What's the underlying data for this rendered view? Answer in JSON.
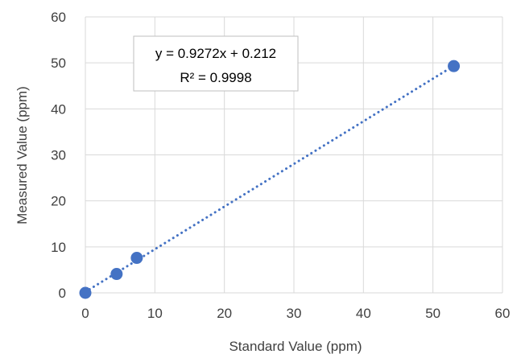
{
  "chart_data": {
    "type": "scatter",
    "title": "",
    "xlabel": "Standard Value (ppm)",
    "ylabel": "Measured Value (ppm)",
    "xlim": [
      0,
      60
    ],
    "ylim": [
      0,
      60
    ],
    "x_ticks": [
      "0",
      "10",
      "20",
      "30",
      "40",
      "50",
      "60"
    ],
    "y_ticks": [
      "0",
      "10",
      "20",
      "30",
      "40",
      "50",
      "60"
    ],
    "grid": true,
    "legend": "none",
    "series": [
      {
        "x": [
          0,
          4.5,
          7.4,
          53
        ],
        "y": [
          0,
          4.1,
          7.6,
          49.3
        ],
        "color": "#4472c4"
      }
    ],
    "trendline": {
      "type": "linear",
      "slope": 0.9272,
      "intercept": 0.212,
      "style": "dotted",
      "color": "#4472c4",
      "x_range": [
        0,
        53
      ]
    },
    "annotation": {
      "equation": "y = 0.9272x + 0.212",
      "r_squared": "R² = 0.9998"
    }
  }
}
